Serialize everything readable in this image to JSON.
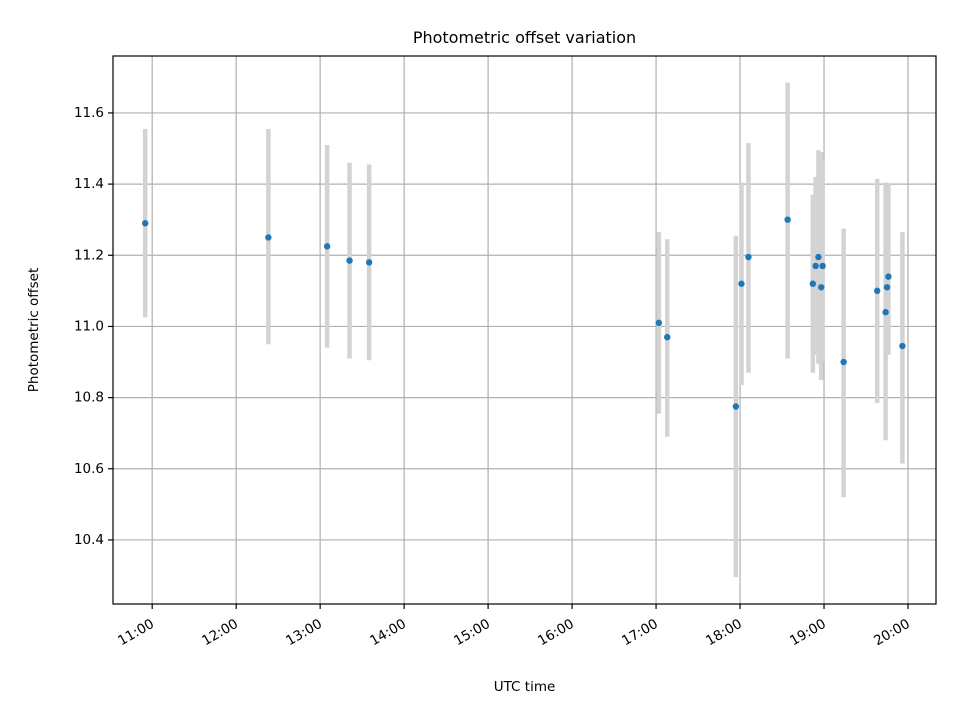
{
  "chart_data": {
    "type": "scatter",
    "title": "Photometric offset variation",
    "xlabel": "UTC time",
    "ylabel": "Photometric offset",
    "x_ticks": [
      "11:00",
      "12:00",
      "13:00",
      "14:00",
      "15:00",
      "16:00",
      "17:00",
      "18:00",
      "19:00",
      "20:00"
    ],
    "y_ticks": [
      "10.4",
      "10.6",
      "10.8",
      "11.0",
      "11.2",
      "11.4",
      "11.6"
    ],
    "xlim": [
      "10:32",
      "20:20"
    ],
    "ylim": [
      10.22,
      11.76
    ],
    "grid": true,
    "point_color": "#1f77b4",
    "errorbar_color": "#d3d3d3",
    "series": [
      {
        "points": [
          {
            "x": "10:55",
            "y": 11.29,
            "y_low": 11.025,
            "y_high": 11.555
          },
          {
            "x": "12:23",
            "y": 11.25,
            "y_low": 10.95,
            "y_high": 11.555
          },
          {
            "x": "13:05",
            "y": 11.225,
            "y_low": 10.94,
            "y_high": 11.51
          },
          {
            "x": "13:21",
            "y": 11.185,
            "y_low": 10.91,
            "y_high": 11.46
          },
          {
            "x": "13:35",
            "y": 11.18,
            "y_low": 10.905,
            "y_high": 11.455
          },
          {
            "x": "17:02",
            "y": 11.01,
            "y_low": 10.755,
            "y_high": 11.265
          },
          {
            "x": "17:08",
            "y": 10.97,
            "y_low": 10.69,
            "y_high": 11.245
          },
          {
            "x": "17:57",
            "y": 10.775,
            "y_low": 10.295,
            "y_high": 11.255
          },
          {
            "x": "18:01",
            "y": 11.12,
            "y_low": 10.835,
            "y_high": 11.405
          },
          {
            "x": "18:06",
            "y": 11.195,
            "y_low": 10.87,
            "y_high": 11.515
          },
          {
            "x": "18:34",
            "y": 11.3,
            "y_low": 10.91,
            "y_high": 11.685
          },
          {
            "x": "18:52",
            "y": 11.12,
            "y_low": 10.87,
            "y_high": 11.37
          },
          {
            "x": "18:54",
            "y": 11.17,
            "y_low": 10.92,
            "y_high": 11.42
          },
          {
            "x": "18:56",
            "y": 11.195,
            "y_low": 10.895,
            "y_high": 11.495
          },
          {
            "x": "18:58",
            "y": 11.11,
            "y_low": 10.85,
            "y_high": 11.49
          },
          {
            "x": "18:59",
            "y": 11.17,
            "y_low": 10.9,
            "y_high": 11.47
          },
          {
            "x": "19:14",
            "y": 10.9,
            "y_low": 10.52,
            "y_high": 11.275
          },
          {
            "x": "19:38",
            "y": 11.1,
            "y_low": 10.785,
            "y_high": 11.415
          },
          {
            "x": "19:44",
            "y": 11.04,
            "y_low": 10.68,
            "y_high": 11.405
          },
          {
            "x": "19:45",
            "y": 11.11,
            "y_low": 10.92,
            "y_high": 11.365
          },
          {
            "x": "19:46",
            "y": 11.14,
            "y_low": 10.92,
            "y_high": 11.4
          },
          {
            "x": "19:56",
            "y": 10.945,
            "y_low": 10.615,
            "y_high": 11.265
          }
        ]
      }
    ]
  }
}
